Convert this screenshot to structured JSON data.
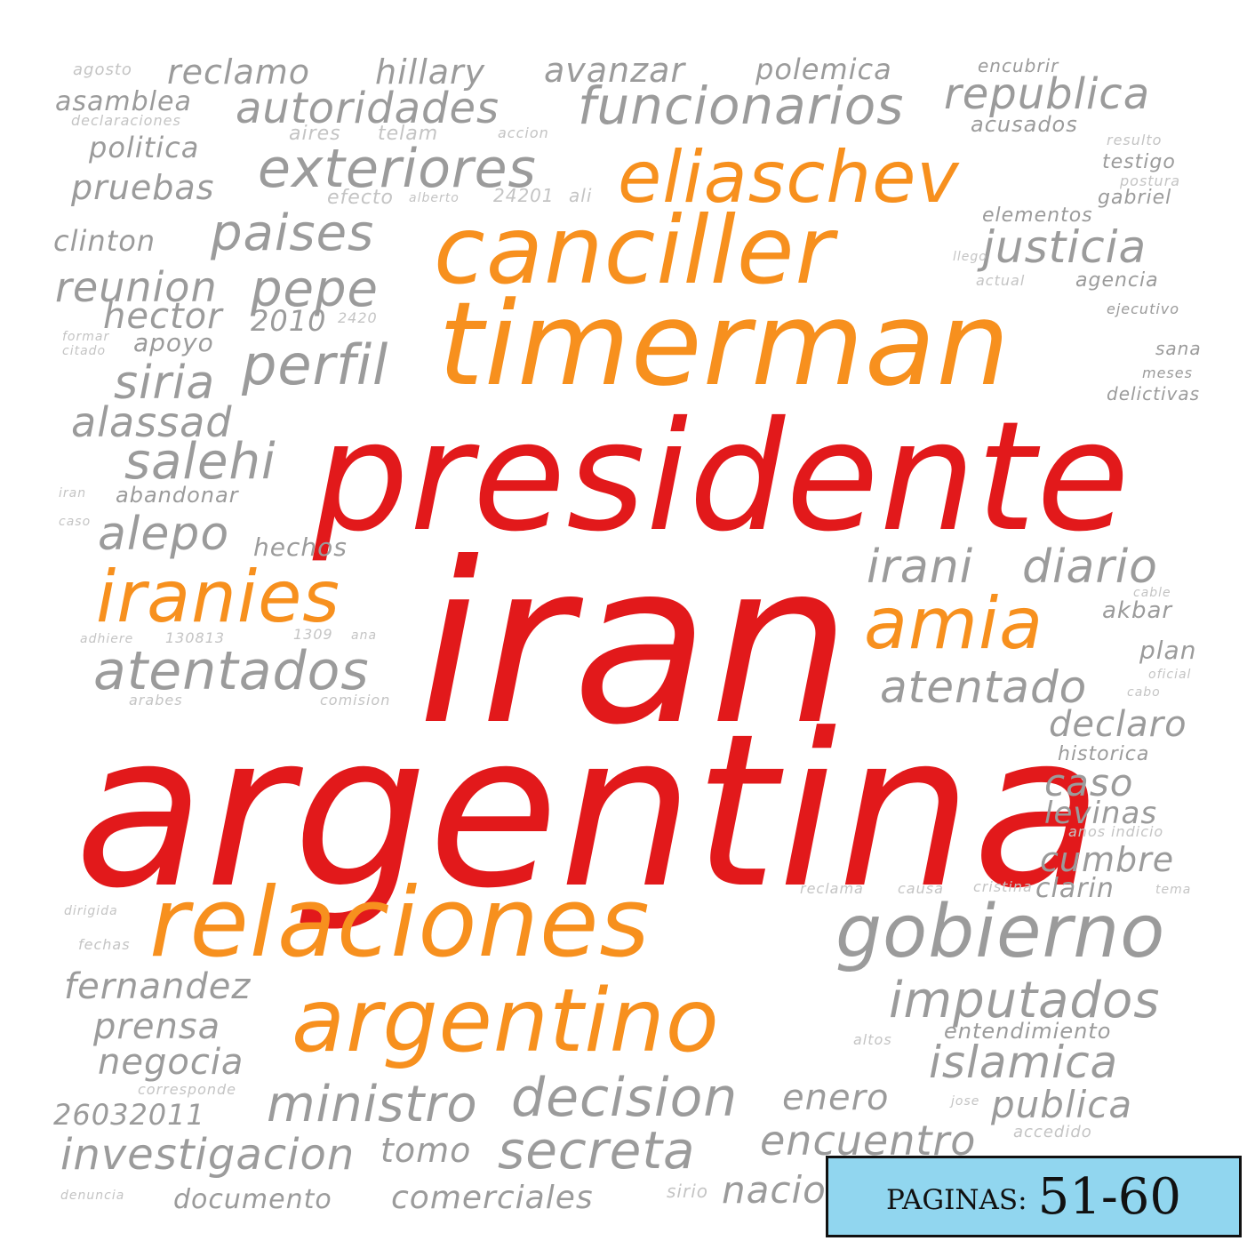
{
  "cloud": {
    "words": [
      {
        "text": "argentina",
        "tone": "red"
      },
      {
        "text": "iran",
        "tone": "red"
      },
      {
        "text": "presidente",
        "tone": "red"
      },
      {
        "text": "timerman",
        "tone": "orange"
      },
      {
        "text": "canciller",
        "tone": "orange"
      },
      {
        "text": "eliaschev",
        "tone": "orange"
      },
      {
        "text": "relaciones",
        "tone": "orange"
      },
      {
        "text": "argentino",
        "tone": "orange"
      },
      {
        "text": "iranies",
        "tone": "orange"
      },
      {
        "text": "amia",
        "tone": "orange"
      },
      {
        "text": "gobierno",
        "tone": "gray"
      },
      {
        "text": "funcionarios",
        "tone": "gray"
      },
      {
        "text": "autoridades",
        "tone": "gray"
      },
      {
        "text": "republica",
        "tone": "gray"
      },
      {
        "text": "exteriores",
        "tone": "gray"
      },
      {
        "text": "justicia",
        "tone": "gray"
      },
      {
        "text": "perfil",
        "tone": "gray"
      },
      {
        "text": "pepe",
        "tone": "gray"
      },
      {
        "text": "paises",
        "tone": "gray"
      },
      {
        "text": "reunion",
        "tone": "gray"
      },
      {
        "text": "hector",
        "tone": "gray"
      },
      {
        "text": "siria",
        "tone": "gray"
      },
      {
        "text": "alassad",
        "tone": "gray"
      },
      {
        "text": "salehi",
        "tone": "gray"
      },
      {
        "text": "alepo",
        "tone": "gray"
      },
      {
        "text": "atentados",
        "tone": "gray"
      },
      {
        "text": "atentado",
        "tone": "gray"
      },
      {
        "text": "irani",
        "tone": "gray"
      },
      {
        "text": "diario",
        "tone": "gray"
      },
      {
        "text": "imputados",
        "tone": "gray"
      },
      {
        "text": "islamica",
        "tone": "gray"
      },
      {
        "text": "decision",
        "tone": "gray"
      },
      {
        "text": "ministro",
        "tone": "gray"
      },
      {
        "text": "secreta",
        "tone": "gray"
      },
      {
        "text": "encuentro",
        "tone": "gray"
      },
      {
        "text": "investigacion",
        "tone": "gray"
      },
      {
        "text": "comerciales",
        "tone": "gray"
      },
      {
        "text": "documento",
        "tone": "gray"
      },
      {
        "text": "fernandez",
        "tone": "gray"
      },
      {
        "text": "prensa",
        "tone": "gray"
      },
      {
        "text": "negocia",
        "tone": "gray"
      },
      {
        "text": "26032011",
        "tone": "gray"
      },
      {
        "text": "publica",
        "tone": "gray"
      },
      {
        "text": "enero",
        "tone": "gray"
      },
      {
        "text": "tomo",
        "tone": "gray"
      },
      {
        "text": "nacio",
        "tone": "gray"
      },
      {
        "text": "declaro",
        "tone": "gray"
      },
      {
        "text": "caso",
        "tone": "gray"
      },
      {
        "text": "levinas",
        "tone": "gray"
      },
      {
        "text": "cumbre",
        "tone": "gray"
      },
      {
        "text": "clarin",
        "tone": "gray"
      },
      {
        "text": "historica",
        "tone": "gray"
      },
      {
        "text": "reclamo",
        "tone": "gray"
      },
      {
        "text": "hillary",
        "tone": "gray"
      },
      {
        "text": "avanzar",
        "tone": "gray"
      },
      {
        "text": "polemica",
        "tone": "gray"
      },
      {
        "text": "encubrir",
        "tone": "gray"
      },
      {
        "text": "asamblea",
        "tone": "gray"
      },
      {
        "text": "politica",
        "tone": "gray"
      },
      {
        "text": "pruebas",
        "tone": "gray"
      },
      {
        "text": "clinton",
        "tone": "gray"
      },
      {
        "text": "acusados",
        "tone": "gray"
      },
      {
        "text": "testigo",
        "tone": "gray"
      },
      {
        "text": "gabriel",
        "tone": "gray"
      },
      {
        "text": "agencia",
        "tone": "gray"
      },
      {
        "text": "ejecutivo",
        "tone": "gray"
      },
      {
        "text": "sana",
        "tone": "gray"
      },
      {
        "text": "meses",
        "tone": "gray"
      },
      {
        "text": "delictivas",
        "tone": "gray"
      },
      {
        "text": "akbar",
        "tone": "gray"
      },
      {
        "text": "plan",
        "tone": "gray"
      },
      {
        "text": "apoyo",
        "tone": "gray"
      },
      {
        "text": "hechos",
        "tone": "gray"
      },
      {
        "text": "abandonar",
        "tone": "gray"
      },
      {
        "text": "entendimiento",
        "tone": "gray"
      },
      {
        "text": "2010",
        "tone": "gray"
      },
      {
        "text": "elementos",
        "tone": "gray"
      },
      {
        "text": "agosto",
        "tone": "light"
      },
      {
        "text": "declaraciones",
        "tone": "light"
      },
      {
        "text": "aires",
        "tone": "light"
      },
      {
        "text": "telam",
        "tone": "light"
      },
      {
        "text": "accion",
        "tone": "light"
      },
      {
        "text": "efecto",
        "tone": "light"
      },
      {
        "text": "alberto",
        "tone": "light"
      },
      {
        "text": "24201",
        "tone": "light"
      },
      {
        "text": "ali",
        "tone": "light"
      },
      {
        "text": "postura",
        "tone": "light"
      },
      {
        "text": "resulto",
        "tone": "light"
      },
      {
        "text": "actual",
        "tone": "light"
      },
      {
        "text": "llego",
        "tone": "light"
      },
      {
        "text": "citado",
        "tone": "light"
      },
      {
        "text": "formar",
        "tone": "light"
      },
      {
        "text": "2420",
        "tone": "light"
      },
      {
        "text": "130813",
        "tone": "light"
      },
      {
        "text": "1309",
        "tone": "light"
      },
      {
        "text": "ana",
        "tone": "light"
      },
      {
        "text": "adhiere",
        "tone": "light"
      },
      {
        "text": "arabes",
        "tone": "light"
      },
      {
        "text": "comision",
        "tone": "light"
      },
      {
        "text": "reclama",
        "tone": "light"
      },
      {
        "text": "causa",
        "tone": "light"
      },
      {
        "text": "cristina",
        "tone": "light"
      },
      {
        "text": "tema",
        "tone": "light"
      },
      {
        "text": "fechas",
        "tone": "light"
      },
      {
        "text": "dirigida",
        "tone": "light"
      },
      {
        "text": "corresponde",
        "tone": "light"
      },
      {
        "text": "anos",
        "tone": "light"
      },
      {
        "text": "indicio",
        "tone": "light"
      },
      {
        "text": "altos",
        "tone": "light"
      },
      {
        "text": "jose",
        "tone": "light"
      },
      {
        "text": "accedido",
        "tone": "light"
      },
      {
        "text": "sirio",
        "tone": "light"
      },
      {
        "text": "denuncia",
        "tone": "light"
      },
      {
        "text": "cable",
        "tone": "light"
      },
      {
        "text": "oficial",
        "tone": "light"
      },
      {
        "text": "cabo",
        "tone": "light"
      },
      {
        "text": "iran",
        "tone": "light"
      },
      {
        "text": "caso",
        "tone": "light"
      }
    ]
  },
  "badge": {
    "label": "PAGINAS:",
    "range": "51-60"
  },
  "colors": {
    "red": "#e2191b",
    "orange": "#f7901e",
    "gray": "#9b9b9b",
    "light": "#c4c4c4",
    "badge_bg": "#91d6ef"
  }
}
